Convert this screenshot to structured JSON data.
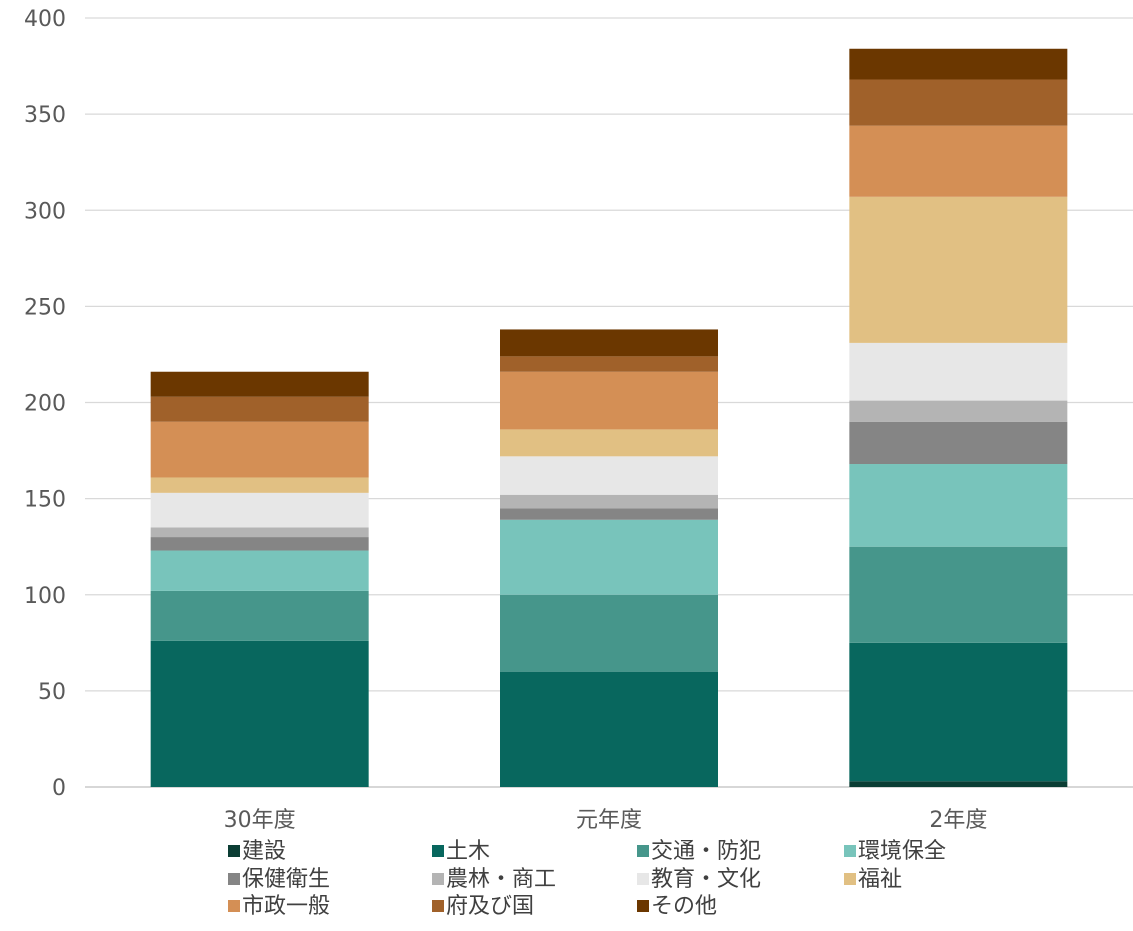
{
  "chart_data": {
    "type": "bar",
    "stacked": true,
    "title": "",
    "xlabel": "",
    "ylabel": "",
    "ylim": [
      0,
      400
    ],
    "yticks": [
      0,
      50,
      100,
      150,
      200,
      250,
      300,
      350,
      400
    ],
    "grid": true,
    "legend_position": "bottom",
    "categories": [
      "30年度",
      "元年度",
      "2年度"
    ],
    "series": [
      {
        "name": "建設",
        "color": "#0b3d34",
        "values": [
          0,
          0,
          3
        ]
      },
      {
        "name": "土木",
        "color": "#08675e",
        "values": [
          76,
          60,
          72
        ]
      },
      {
        "name": "交通・防犯",
        "color": "#46968b",
        "values": [
          26,
          40,
          50
        ]
      },
      {
        "name": "環境保全",
        "color": "#78c4bb",
        "values": [
          21,
          39,
          43
        ]
      },
      {
        "name": "保健衛生",
        "color": "#858585",
        "values": [
          7,
          6,
          22
        ]
      },
      {
        "name": "農林・商工",
        "color": "#b4b4b4",
        "values": [
          5,
          7,
          11
        ]
      },
      {
        "name": "教育・文化",
        "color": "#e7e7e7",
        "values": [
          18,
          20,
          30
        ]
      },
      {
        "name": "福祉",
        "color": "#e1c083",
        "values": [
          8,
          14,
          76
        ]
      },
      {
        "name": "市政一般",
        "color": "#d48f55",
        "values": [
          29,
          30,
          37
        ]
      },
      {
        "name": "府及び国",
        "color": "#a0612a",
        "values": [
          13,
          8,
          24
        ]
      },
      {
        "name": "その他",
        "color": "#6b3700",
        "values": [
          13,
          14,
          16
        ]
      }
    ]
  }
}
